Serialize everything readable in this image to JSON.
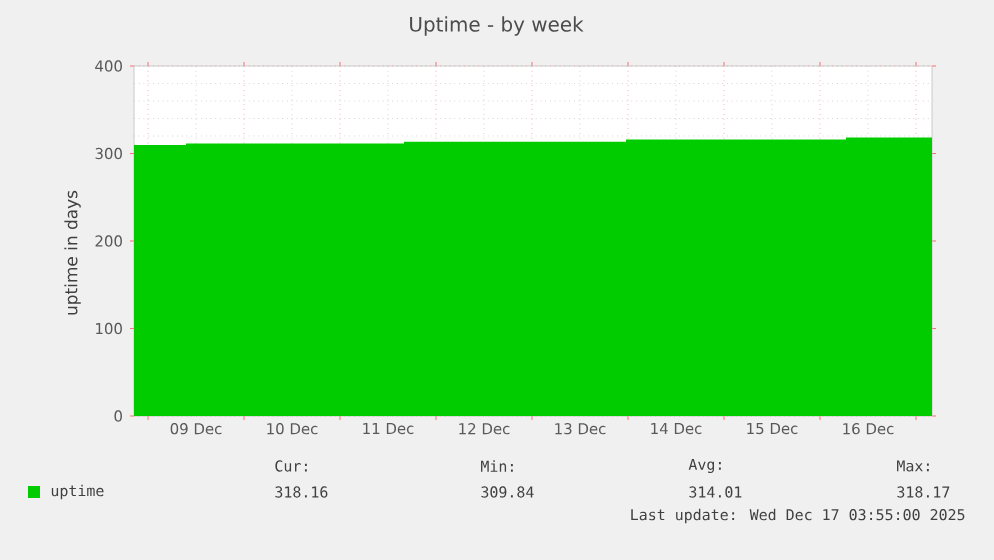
{
  "chart_data": {
    "type": "area",
    "title": "Uptime - by week",
    "ylabel": "uptime in days",
    "x": [
      "2025-12-08T20:30",
      "2025-12-09T09:30",
      "2025-12-11T16:00",
      "2025-12-13T23:30",
      "2025-12-16T06:30",
      "2025-12-17T04:00"
    ],
    "series": [
      {
        "name": "uptime",
        "color": "#00cc00",
        "values": [
          309.84,
          311.5,
          313.5,
          316,
          318.17,
          318.17
        ]
      }
    ],
    "xlim": [
      "2025-12-08T20:30",
      "2025-12-17T04:00"
    ],
    "xticks": [
      {
        "value": "2025-12-09T00:00",
        "label": null
      },
      {
        "value": "2025-12-09T12:00",
        "label": "09 Dec"
      },
      {
        "value": "2025-12-10T00:00",
        "label": null
      },
      {
        "value": "2025-12-10T12:00",
        "label": "10 Dec"
      },
      {
        "value": "2025-12-11T00:00",
        "label": null
      },
      {
        "value": "2025-12-11T12:00",
        "label": "11 Dec"
      },
      {
        "value": "2025-12-12T00:00",
        "label": null
      },
      {
        "value": "2025-12-12T12:00",
        "label": "12 Dec"
      },
      {
        "value": "2025-12-13T00:00",
        "label": null
      },
      {
        "value": "2025-12-13T12:00",
        "label": "13 Dec"
      },
      {
        "value": "2025-12-14T00:00",
        "label": null
      },
      {
        "value": "2025-12-14T12:00",
        "label": "14 Dec"
      },
      {
        "value": "2025-12-15T00:00",
        "label": null
      },
      {
        "value": "2025-12-15T12:00",
        "label": "15 Dec"
      },
      {
        "value": "2025-12-16T00:00",
        "label": null
      },
      {
        "value": "2025-12-16T12:00",
        "label": "16 Dec"
      },
      {
        "value": "2025-12-17T00:00",
        "label": null
      }
    ],
    "ylim": [
      0,
      400
    ],
    "yticks": [
      0,
      100,
      200,
      300,
      400
    ],
    "grid": true,
    "legend": "bottom left",
    "annotations": [
      "Cur:",
      "Min:",
      "Avg:",
      "Max:",
      "318.16",
      "309.84",
      "314.01",
      "318.17",
      "Last update: Wed Dec 17 03:55:00 2025"
    ]
  }
}
